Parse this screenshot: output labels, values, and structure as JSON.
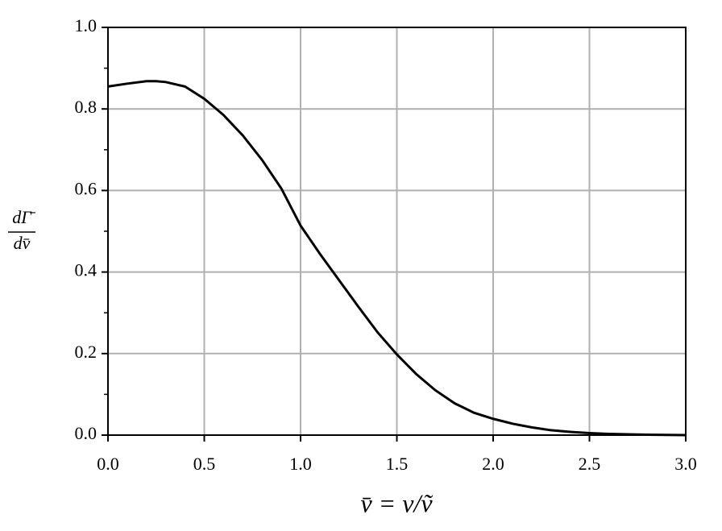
{
  "chart_data": {
    "type": "line",
    "xlabel": "v̄ = v/ṽ",
    "ylabel": {
      "numerator": "dΓ̄",
      "denominator": "dv̄"
    },
    "x": [
      0,
      0.1,
      0.2,
      0.25,
      0.3,
      0.4,
      0.5,
      0.6,
      0.7,
      0.8,
      0.9,
      1.0,
      1.1,
      1.2,
      1.3,
      1.4,
      1.5,
      1.6,
      1.7,
      1.8,
      1.9,
      2.0,
      2.1,
      2.2,
      2.3,
      2.4,
      2.5,
      2.6,
      2.7,
      2.8,
      2.9,
      3.0
    ],
    "series": [
      {
        "color": "#000000",
        "values": [
          0.855,
          0.862,
          0.868,
          0.868,
          0.866,
          0.855,
          0.825,
          0.785,
          0.735,
          0.675,
          0.605,
          0.514,
          0.445,
          0.38,
          0.315,
          0.252,
          0.198,
          0.15,
          0.11,
          0.078,
          0.055,
          0.04,
          0.028,
          0.019,
          0.012,
          0.008,
          0.005,
          0.003,
          0.002,
          0.001,
          0.0005,
          0
        ]
      }
    ],
    "xlim": [
      0,
      3
    ],
    "ylim": [
      0,
      1
    ],
    "xticks": [
      {
        "value": 0,
        "label": "0.0"
      },
      0.5,
      {
        "value": 1,
        "label": "1.0"
      },
      1.5,
      {
        "value": 2,
        "label": "2.0"
      },
      2.5,
      {
        "value": 3,
        "label": "3.0"
      }
    ],
    "yticks": [
      {
        "value": 0,
        "label": "0.0"
      },
      0.2,
      0.4,
      0.6,
      0.8,
      {
        "value": 1,
        "label": "1.0"
      }
    ],
    "yminorticks": [
      0.1,
      0.3,
      0.5,
      0.7,
      0.9
    ],
    "grid": true
  }
}
